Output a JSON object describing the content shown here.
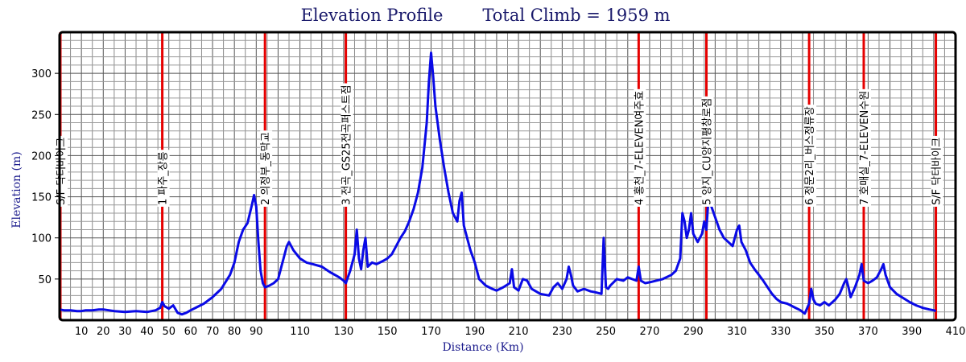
{
  "chart_data": {
    "type": "line",
    "title": "Elevation Profile",
    "subtitle": "Total Climb = 1959 m",
    "xlabel": "Distance (Km)",
    "ylabel": "Elevation (m)",
    "xlim": [
      0,
      410
    ],
    "ylim": [
      0,
      350
    ],
    "x_ticks": [
      10,
      20,
      30,
      40,
      50,
      60,
      70,
      80,
      90,
      110,
      130,
      150,
      170,
      190,
      210,
      230,
      250,
      270,
      290,
      310,
      330,
      350,
      370,
      390,
      410
    ],
    "y_ticks": [
      50,
      100,
      150,
      200,
      250,
      300
    ],
    "grid": true,
    "colors": {
      "line": "#0a0ae6",
      "marker": "#e60000",
      "title": "#1a1a6b",
      "axis_title": "#1a1a8c"
    },
    "checkpoints": [
      {
        "km": 0,
        "label": "S/F 닥터바이크"
      },
      {
        "km": 47,
        "label": "1 파주_장릉"
      },
      {
        "km": 94,
        "label": "2 의정부_동막교"
      },
      {
        "km": 131,
        "label": "3 전곡_GS25전곡퍼스트점"
      },
      {
        "km": 265,
        "label": "4 홍천_7-ELEVEN여주효"
      },
      {
        "km": 296,
        "label": "5 양지_CU양지평창로점"
      },
      {
        "km": 343,
        "label": "6 정문2리_버스정류장"
      },
      {
        "km": 368,
        "label": "7 호매실_7-ELEVEN수원"
      },
      {
        "km": 401,
        "label": "S/F 닥터바이크"
      }
    ],
    "series": [
      {
        "name": "Elevation",
        "x": [
          0,
          2,
          5,
          8,
          10,
          12,
          15,
          18,
          20,
          25,
          30,
          35,
          40,
          44,
          46,
          47,
          48,
          50,
          52,
          54,
          56,
          58,
          60,
          63,
          66,
          70,
          74,
          78,
          80,
          82,
          84,
          86,
          88,
          89,
          90,
          91,
          92,
          93,
          94,
          96,
          98,
          100,
          102,
          104,
          105,
          107,
          110,
          113,
          116,
          120,
          124,
          126,
          128,
          130,
          131,
          133,
          135,
          136,
          137,
          138,
          139,
          140,
          141,
          143,
          145,
          148,
          150,
          152,
          154,
          156,
          158,
          160,
          162,
          164,
          166,
          168,
          169,
          170,
          171,
          172,
          174,
          176,
          178,
          180,
          182,
          183,
          184,
          185,
          186,
          187,
          188,
          190,
          192,
          195,
          198,
          200,
          203,
          206,
          207,
          208,
          210,
          212,
          214,
          216,
          220,
          224,
          226,
          228,
          230,
          232,
          233,
          234,
          235,
          237,
          240,
          243,
          245,
          248,
          249,
          250,
          251,
          252,
          255,
          258,
          260,
          262,
          264,
          265,
          266,
          268,
          270,
          273,
          276,
          280,
          282,
          284,
          285,
          286,
          287,
          288,
          289,
          290,
          292,
          294,
          295,
          296,
          297,
          298,
          300,
          302,
          304,
          306,
          308,
          310,
          311,
          312,
          314,
          316,
          318,
          320,
          322,
          324,
          326,
          328,
          330,
          333,
          336,
          339,
          341,
          343,
          344,
          345,
          346,
          348,
          350,
          352,
          355,
          357,
          359,
          360,
          361,
          362,
          364,
          366,
          367,
          368,
          370,
          372,
          374,
          376,
          377,
          378,
          380,
          383,
          386,
          389,
          392,
          395,
          398,
          400,
          401
        ],
        "values": [
          13,
          12,
          12,
          11,
          11,
          12,
          12,
          13,
          13,
          11,
          10,
          11,
          10,
          12,
          15,
          22,
          17,
          14,
          18,
          9,
          7,
          9,
          12,
          16,
          20,
          28,
          38,
          55,
          70,
          95,
          110,
          118,
          140,
          152,
          138,
          95,
          60,
          45,
          40,
          42,
          45,
          50,
          70,
          90,
          95,
          85,
          75,
          70,
          68,
          65,
          58,
          55,
          52,
          48,
          45,
          60,
          80,
          110,
          75,
          62,
          85,
          100,
          65,
          70,
          68,
          72,
          75,
          80,
          90,
          100,
          108,
          120,
          135,
          155,
          185,
          240,
          290,
          325,
          295,
          260,
          220,
          185,
          155,
          130,
          120,
          145,
          155,
          115,
          105,
          95,
          85,
          70,
          50,
          42,
          38,
          36,
          40,
          45,
          62,
          40,
          36,
          50,
          48,
          38,
          32,
          30,
          40,
          45,
          38,
          50,
          65,
          55,
          42,
          35,
          38,
          35,
          34,
          32,
          100,
          40,
          38,
          42,
          50,
          48,
          52,
          50,
          48,
          65,
          48,
          45,
          46,
          48,
          50,
          55,
          60,
          75,
          130,
          120,
          100,
          110,
          130,
          105,
          95,
          105,
          120,
          110,
          150,
          140,
          125,
          110,
          100,
          95,
          90,
          110,
          115,
          95,
          85,
          70,
          62,
          55,
          48,
          40,
          32,
          26,
          22,
          20,
          16,
          12,
          8,
          20,
          38,
          25,
          20,
          18,
          22,
          18,
          25,
          32,
          45,
          50,
          40,
          28,
          40,
          55,
          68,
          48,
          45,
          48,
          52,
          62,
          68,
          55,
          40,
          32,
          27,
          22,
          18,
          15,
          13,
          12,
          11
        ]
      }
    ]
  }
}
